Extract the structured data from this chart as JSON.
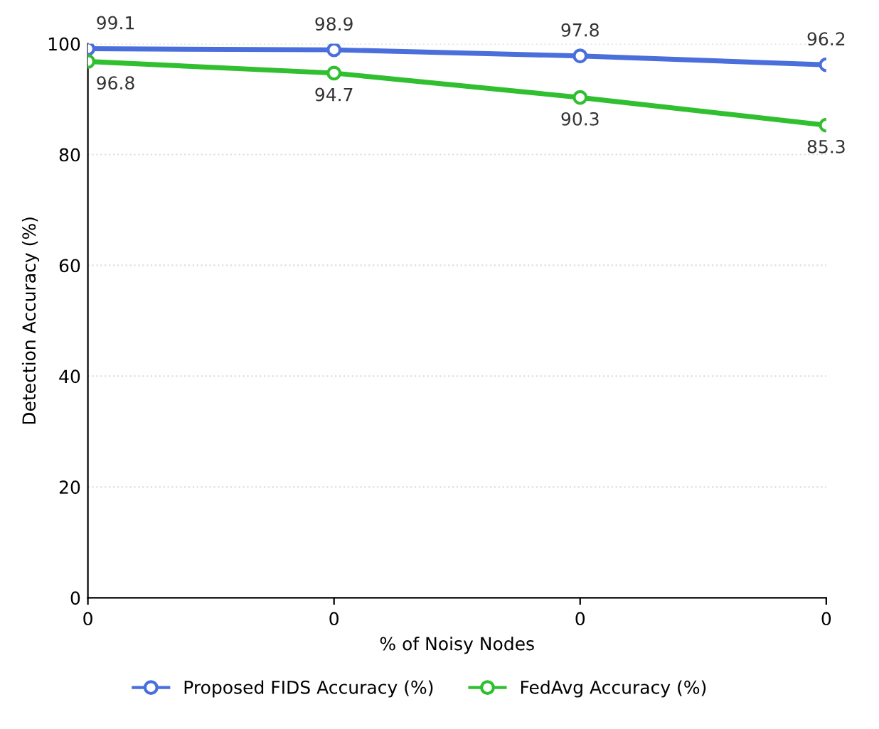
{
  "chart_data": {
    "type": "line",
    "xlabel": "% of Noisy Nodes",
    "ylabel": "Detection Accuracy (%)",
    "categories": [
      "0",
      "0",
      "0",
      "0"
    ],
    "series": [
      {
        "name": "Proposed FIDS Accuracy (%)",
        "color": "#4a6fdc",
        "values": [
          99.1,
          98.9,
          97.8,
          96.2
        ]
      },
      {
        "name": "FedAvg Accuracy (%)",
        "color": "#2fbf2f",
        "values": [
          96.8,
          94.7,
          90.3,
          85.3
        ]
      }
    ],
    "ylim": [
      0,
      100
    ],
    "yticks": [
      0,
      20,
      40,
      60,
      80,
      100
    ],
    "grid": "y",
    "legend": "bottom",
    "marker": "circle",
    "line_style": "solid",
    "data_labels": true
  }
}
